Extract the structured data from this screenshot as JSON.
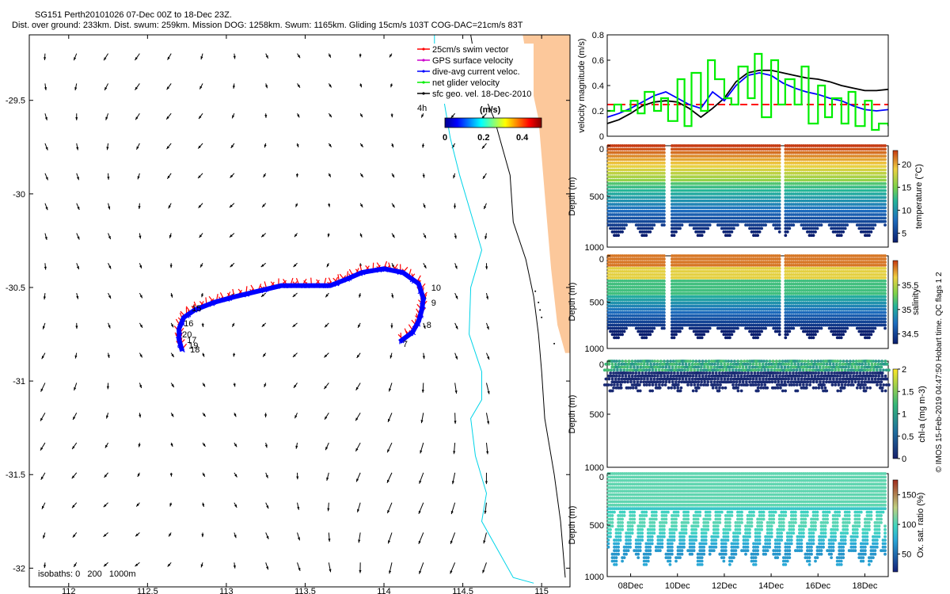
{
  "header": {
    "title": "SG151 Perth20101026 07-Dec 00Z to 18-Dec 23Z.",
    "subtitle": "Dist. over ground: 233km. Dist. swum: 259km. Mission DOG: 1258km. Swum: 1165km. Gliding 15cm/s 103T COG-DAC=21cm/s 83T"
  },
  "footer_note": "© IMOS 15-Feb-2019 04:47:50 Hobart time. QC flags 1 2",
  "colors": {
    "land": "#fcc89b",
    "isobath_200": "#00d4e8",
    "isobath_1000": "#000000",
    "swim": "#ff0000",
    "dac": "#0000ff",
    "net": "#00ee00",
    "black": "#000000"
  },
  "chart_data": [
    {
      "type": "map",
      "id": "track-map",
      "xlim": [
        111.75,
        115.18
      ],
      "ylim": [
        -32.1,
        -29.15
      ],
      "xticks": [
        "112",
        "112.5",
        "113",
        "113.5",
        "114",
        "114.5",
        "115"
      ],
      "xtick_values": [
        112,
        112.5,
        113,
        113.5,
        114,
        114.5,
        115
      ],
      "yticks": [
        "-29.5",
        "-30",
        "-30.5",
        "-31",
        "-31.5",
        "-32"
      ],
      "ytick_values": [
        -29.5,
        -30,
        -30.5,
        -31,
        -31.5,
        -32
      ],
      "legend": {
        "placement": "top-right",
        "entries": [
          {
            "label": "25cm/s swim vector",
            "color": "#ff0000"
          },
          {
            "label": "GPS surface velocity",
            "color": "#cc00cc"
          },
          {
            "label": "dive-avg current veloc.",
            "color": "#0000ff"
          },
          {
            "label": "net glider velocity",
            "color": "#00ee00"
          },
          {
            "label": "sfc geo. vel. 18-Dec-2010",
            "color": "#000000"
          }
        ]
      },
      "speed_colorbar": {
        "label": "(m/s)",
        "ticks": [
          "0",
          "0.2",
          "0.4"
        ],
        "tick_values": [
          0,
          0.2,
          0.4
        ],
        "range": [
          0,
          0.5
        ]
      },
      "isobaths_label": "isobaths: 0   200   1000m",
      "coast_tag": "4h",
      "track": [
        [
          114.1,
          -30.79
        ],
        [
          114.18,
          -30.74
        ],
        [
          114.22,
          -30.68
        ],
        [
          114.24,
          -30.62
        ],
        [
          114.25,
          -30.56
        ],
        [
          114.22,
          -30.48
        ],
        [
          114.12,
          -30.42
        ],
        [
          114.0,
          -30.4
        ],
        [
          113.86,
          -30.42
        ],
        [
          113.75,
          -30.46
        ],
        [
          113.66,
          -30.49
        ],
        [
          113.5,
          -30.49
        ],
        [
          113.35,
          -30.49
        ],
        [
          113.2,
          -30.52
        ],
        [
          113.05,
          -30.55
        ],
        [
          112.92,
          -30.58
        ],
        [
          112.8,
          -30.62
        ],
        [
          112.73,
          -30.66
        ],
        [
          112.7,
          -30.72
        ],
        [
          112.7,
          -30.78
        ],
        [
          112.72,
          -30.84
        ]
      ],
      "day_labels": [
        {
          "day": "7",
          "lon": 114.12,
          "lat": -30.8
        },
        {
          "day": "8",
          "lon": 114.27,
          "lat": -30.7
        },
        {
          "day": "9",
          "lon": 114.3,
          "lat": -30.58
        },
        {
          "day": "10",
          "lon": 114.3,
          "lat": -30.5
        },
        {
          "day": "15",
          "lon": 112.78,
          "lat": -30.61
        },
        {
          "day": "16",
          "lon": 112.73,
          "lat": -30.69
        },
        {
          "day": "20",
          "lon": 112.72,
          "lat": -30.75
        },
        {
          "day": "17",
          "lon": 112.75,
          "lat": -30.78
        },
        {
          "day": "19",
          "lon": 112.76,
          "lat": -30.81
        },
        {
          "day": "18",
          "lon": 112.77,
          "lat": -30.83
        }
      ],
      "coast_isobath_200": [
        [
          114.32,
          -29.15
        ],
        [
          114.32,
          -29.25
        ],
        [
          114.37,
          -29.45
        ],
        [
          114.42,
          -29.7
        ],
        [
          114.48,
          -29.9
        ],
        [
          114.55,
          -30.1
        ],
        [
          114.62,
          -30.3
        ],
        [
          114.55,
          -30.5
        ],
        [
          114.54,
          -30.75
        ],
        [
          114.62,
          -30.95
        ],
        [
          114.62,
          -31.1
        ],
        [
          114.55,
          -31.2
        ],
        [
          114.58,
          -31.4
        ],
        [
          114.65,
          -31.6
        ],
        [
          114.62,
          -31.75
        ],
        [
          114.72,
          -31.9
        ],
        [
          114.82,
          -32.05
        ],
        [
          114.95,
          -32.08
        ]
      ],
      "coast_isobath_1000": [
        [
          114.55,
          -29.15
        ],
        [
          114.6,
          -29.4
        ],
        [
          114.7,
          -29.6
        ],
        [
          114.8,
          -29.9
        ],
        [
          114.82,
          -30.15
        ],
        [
          114.9,
          -30.35
        ],
        [
          114.95,
          -30.55
        ],
        [
          114.98,
          -30.75
        ],
        [
          115.0,
          -30.95
        ],
        [
          115.02,
          -31.2
        ],
        [
          115.08,
          -31.5
        ],
        [
          115.12,
          -31.75
        ],
        [
          115.15,
          -32.05
        ]
      ],
      "land_coast": [
        [
          114.88,
          -29.15
        ],
        [
          114.93,
          -29.4
        ],
        [
          114.98,
          -29.6
        ],
        [
          115.0,
          -29.8
        ],
        [
          115.02,
          -30.0
        ],
        [
          115.04,
          -30.2
        ],
        [
          115.06,
          -30.4
        ],
        [
          115.08,
          -30.55
        ],
        [
          115.1,
          -30.7
        ],
        [
          115.15,
          -30.85
        ]
      ]
    },
    {
      "type": "line",
      "id": "velocity-panel",
      "ylabel": "velocity magnitude (m/s)",
      "ylim": [
        0,
        0.8
      ],
      "yticks": [
        "0",
        "0.2",
        "0.4",
        "0.6",
        "0.8"
      ],
      "ytick_values": [
        0,
        0.2,
        0.4,
        0.6,
        0.8
      ],
      "xlim": [
        7.0,
        19.0
      ],
      "reference_line": 0.25,
      "series": [
        {
          "color": "#000000",
          "x": [
            7.0,
            7.5,
            8.0,
            8.5,
            9.0,
            9.5,
            10.0,
            10.5,
            11.0,
            11.5,
            12.0,
            12.5,
            13.0,
            13.5,
            14.0,
            14.5,
            15.0,
            15.5,
            16.0,
            16.5,
            17.0,
            17.5,
            18.0,
            18.5,
            19.0
          ],
          "y": [
            0.1,
            0.13,
            0.18,
            0.24,
            0.27,
            0.28,
            0.27,
            0.22,
            0.15,
            0.22,
            0.3,
            0.43,
            0.5,
            0.52,
            0.52,
            0.5,
            0.48,
            0.46,
            0.45,
            0.43,
            0.4,
            0.38,
            0.36,
            0.36,
            0.37
          ]
        },
        {
          "color": "#0000ff",
          "x": [
            7.0,
            7.5,
            8.0,
            8.5,
            9.0,
            9.5,
            10.0,
            10.5,
            11.0,
            11.5,
            12.0,
            12.5,
            13.0,
            13.5,
            14.0,
            14.5,
            15.0,
            15.5,
            16.0,
            16.5,
            17.0,
            17.5,
            18.0,
            18.5,
            19.0
          ],
          "y": [
            0.15,
            0.18,
            0.22,
            0.27,
            0.32,
            0.35,
            0.3,
            0.25,
            0.22,
            0.35,
            0.28,
            0.4,
            0.48,
            0.5,
            0.48,
            0.42,
            0.38,
            0.35,
            0.33,
            0.3,
            0.28,
            0.24,
            0.21,
            0.2,
            0.21
          ]
        },
        {
          "color": "#00ee00",
          "style": "steps",
          "x": [
            7.0,
            7.3,
            7.6,
            8.0,
            8.3,
            8.6,
            9.0,
            9.3,
            9.6,
            10.0,
            10.3,
            10.6,
            11.0,
            11.3,
            11.6,
            12.0,
            12.3,
            12.6,
            13.0,
            13.3,
            13.6,
            14.0,
            14.3,
            14.6,
            15.0,
            15.3,
            15.6,
            16.0,
            16.3,
            16.6,
            17.0,
            17.3,
            17.6,
            18.0,
            18.3,
            18.6,
            19.0
          ],
          "y": [
            0.2,
            0.25,
            0.2,
            0.28,
            0.18,
            0.35,
            0.2,
            0.3,
            0.12,
            0.45,
            0.08,
            0.5,
            0.2,
            0.6,
            0.45,
            0.3,
            0.25,
            0.55,
            0.3,
            0.65,
            0.15,
            0.6,
            0.25,
            0.45,
            0.25,
            0.55,
            0.1,
            0.4,
            0.15,
            0.3,
            0.1,
            0.35,
            0.08,
            0.28,
            0.05,
            0.1,
            0.08
          ]
        }
      ]
    },
    {
      "type": "scatter",
      "id": "temperature-panel",
      "ylabel": "Depth (m)",
      "cbar_label": "temperature (°C)",
      "yticks": [
        "0",
        "500",
        "1000"
      ],
      "ytick_values": [
        0,
        500,
        1000
      ],
      "ylim": [
        0,
        1000
      ],
      "cbar_ticks": [
        "5",
        "10",
        "15",
        "20"
      ],
      "cbar_tick_values": [
        5,
        10,
        15,
        20
      ],
      "cbar_range": [
        3,
        23
      ],
      "gaps_day": [
        9.6,
        14.5
      ]
    },
    {
      "type": "scatter",
      "id": "salinity-panel",
      "ylabel": "Depth (m)",
      "cbar_label": "salinity",
      "yticks": [
        "0",
        "500",
        "1000"
      ],
      "ytick_values": [
        0,
        500,
        1000
      ],
      "ylim": [
        0,
        1000
      ],
      "cbar_ticks": [
        "34.5",
        "35",
        "35.5"
      ],
      "cbar_tick_values": [
        34.5,
        35,
        35.5
      ],
      "cbar_range": [
        34.3,
        36.0
      ],
      "gaps_day": [
        9.6,
        14.5
      ]
    },
    {
      "type": "scatter",
      "id": "chla-panel",
      "ylabel": "Depth (m)",
      "cbar_label": "chl-a (mg m-3)",
      "yticks": [
        "0",
        "500",
        "1000"
      ],
      "ytick_values": [
        0,
        500,
        1000
      ],
      "ylim": [
        0,
        1000
      ],
      "cbar_ticks": [
        "0",
        "0.5",
        "1",
        "1.5",
        "2"
      ],
      "cbar_tick_values": [
        0,
        0.5,
        1,
        1.5,
        2
      ],
      "cbar_range": [
        0,
        2
      ]
    },
    {
      "type": "scatter",
      "id": "oxygen-panel",
      "ylabel": "Depth (m)",
      "cbar_label": "Ox. sat. ratio (%)",
      "yticks": [
        "0",
        "500",
        "1000"
      ],
      "ytick_values": [
        0,
        500,
        1000
      ],
      "ylim": [
        0,
        1000
      ],
      "cbar_ticks": [
        "50",
        "100",
        "150"
      ],
      "cbar_tick_values": [
        50,
        100,
        150
      ],
      "cbar_range": [
        20,
        175
      ],
      "xticks": [
        "08Dec",
        "10Dec",
        "12Dec",
        "14Dec",
        "16Dec",
        "18Dec"
      ],
      "xtick_values": [
        8,
        10,
        12,
        14,
        16,
        18
      ]
    }
  ]
}
